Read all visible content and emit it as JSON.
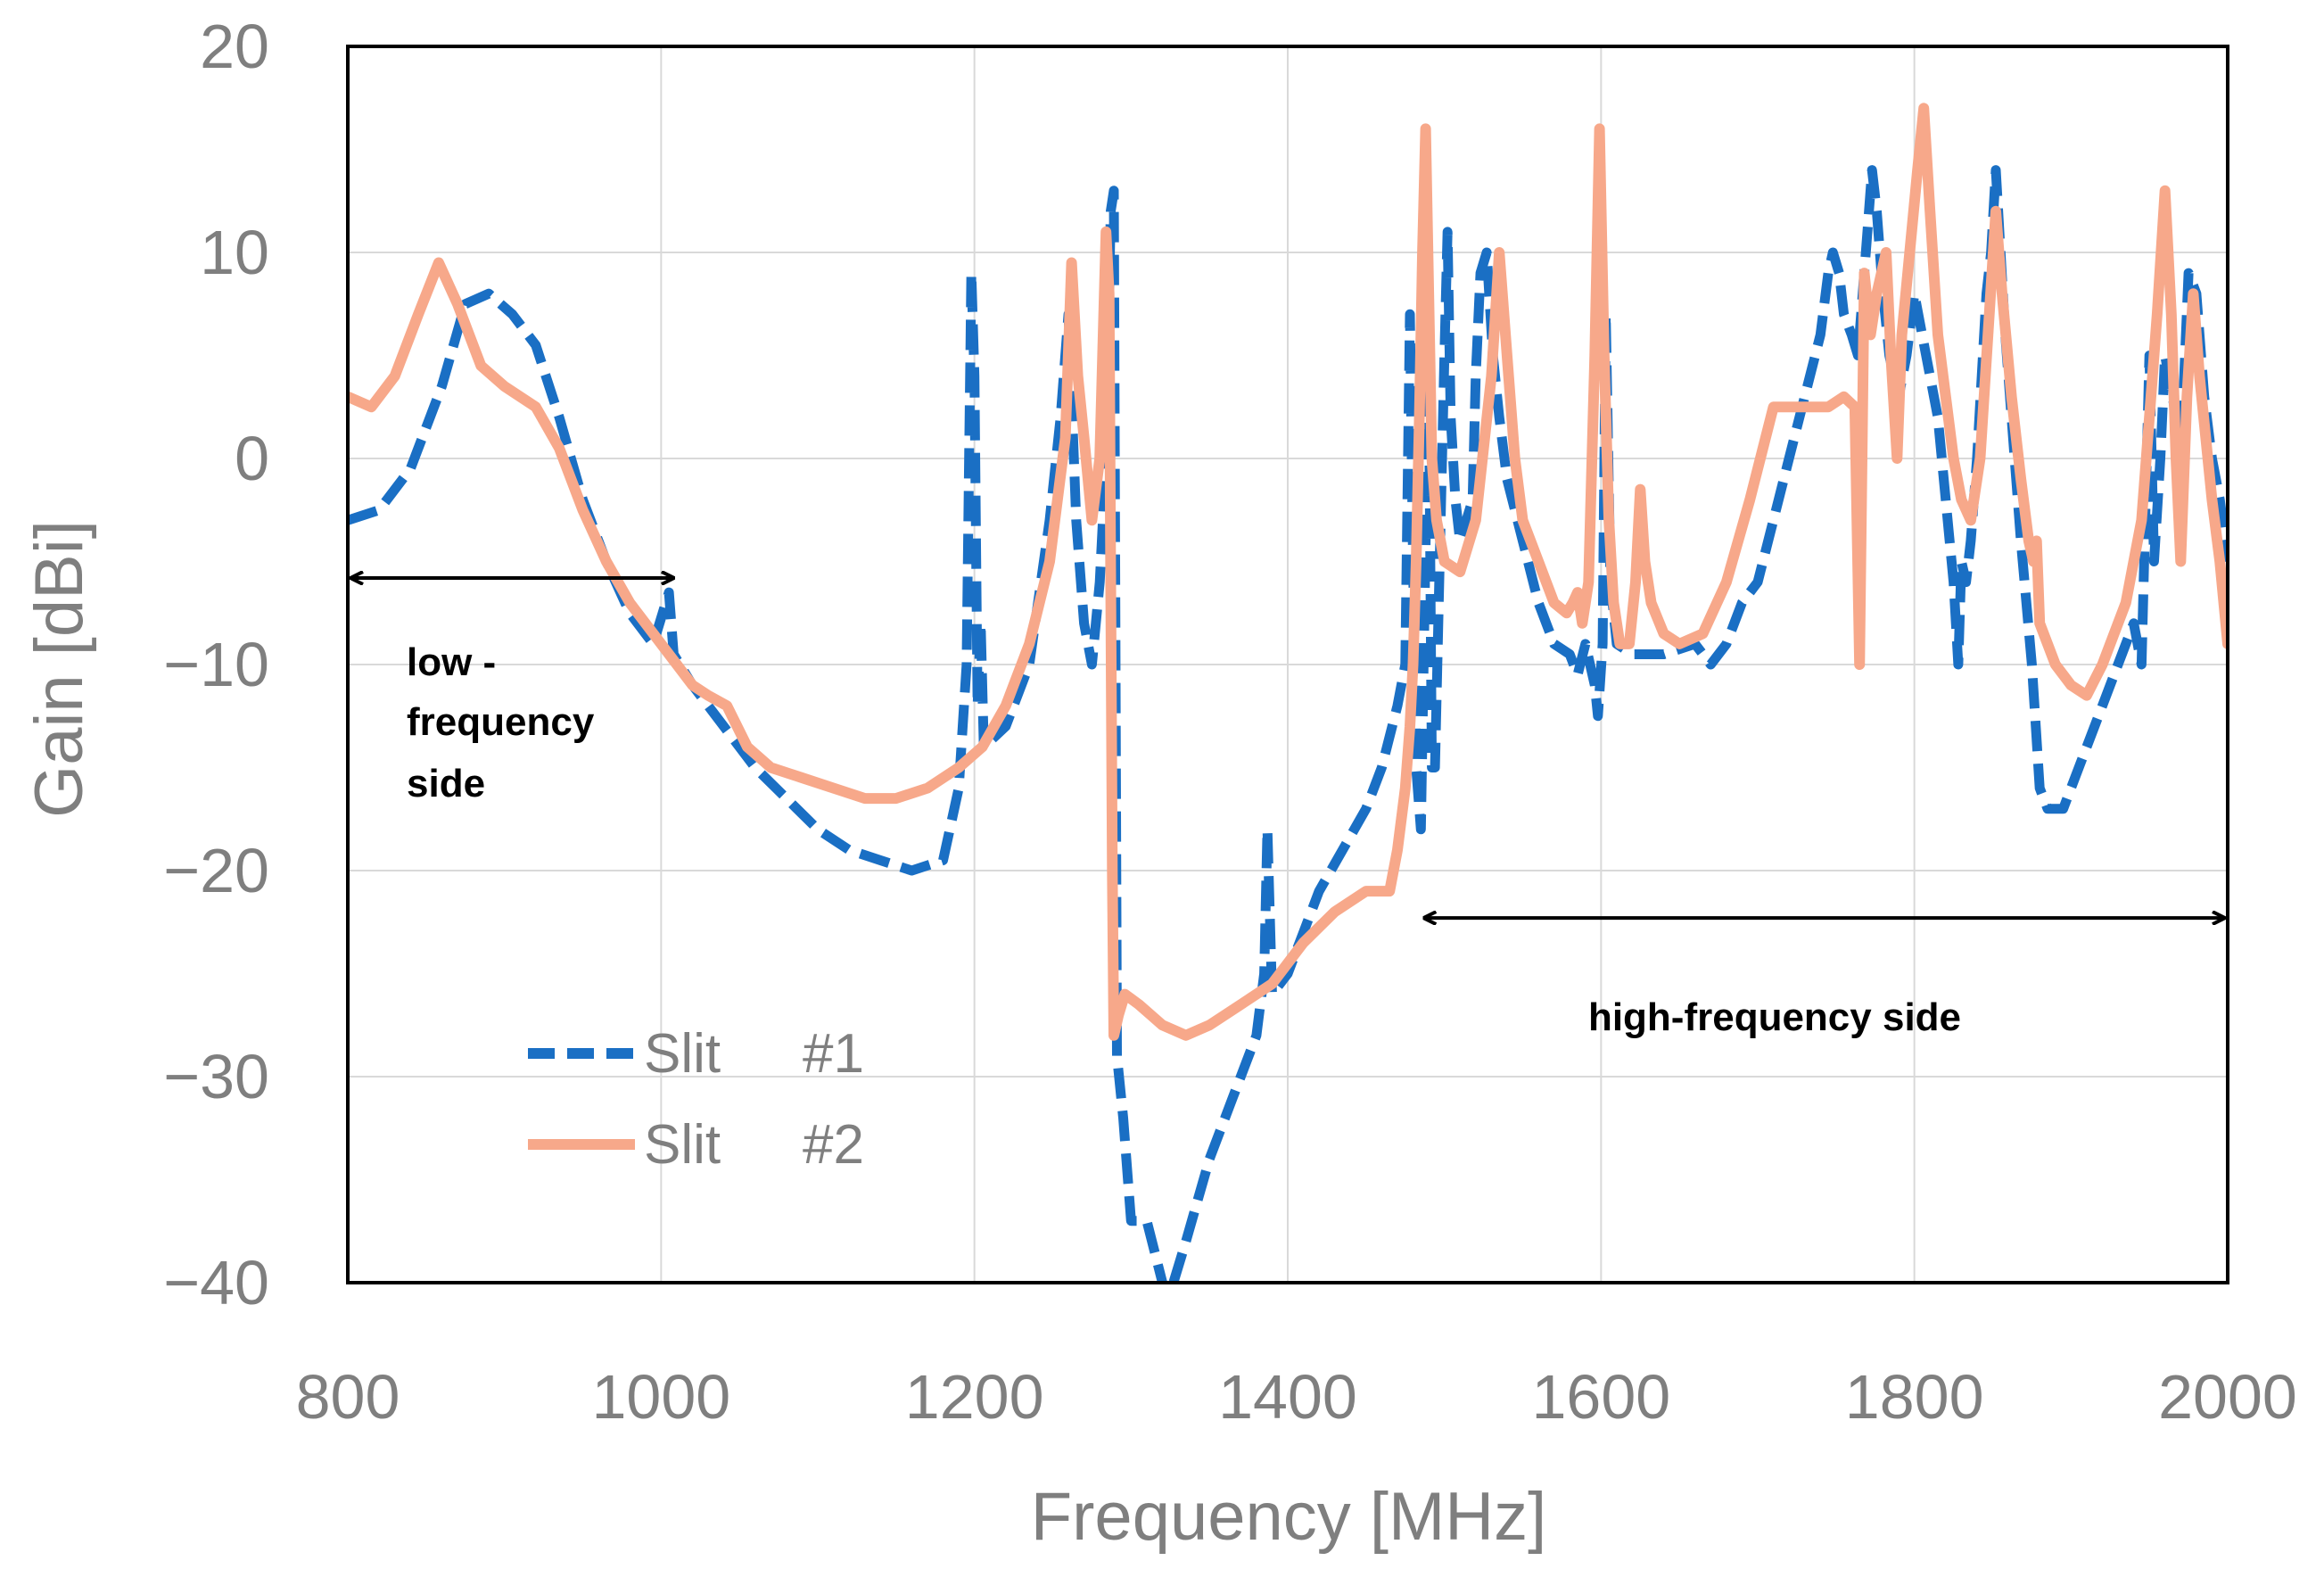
{
  "chart_data": {
    "type": "line",
    "title": "",
    "xlabel": "Frequency [MHz]",
    "ylabel": "Gain [dBi]",
    "xlim": [
      800,
      2000
    ],
    "ylim": [
      -40,
      20
    ],
    "x_ticks": [
      800,
      1000,
      1200,
      1400,
      1600,
      1800,
      2000
    ],
    "y_ticks": [
      20,
      10,
      0,
      -10,
      -20,
      -30,
      -40
    ],
    "x_tick_labels": [
      "800",
      "1000",
      "1200",
      "1400",
      "1600",
      "1800",
      "2000"
    ],
    "y_tick_labels": [
      "20",
      "10",
      "0",
      "−10",
      "−20",
      "−30",
      "−40"
    ],
    "grid": true,
    "legend_position": "bottom-left",
    "series": [
      {
        "name": "Slit #1",
        "legend_label": "Slit",
        "legend_suffix": "#1",
        "color": "#1a6fc4",
        "style": "dashed",
        "points": [
          [
            800,
            -3
          ],
          [
            820,
            -2.5
          ],
          [
            840,
            -0.5
          ],
          [
            860,
            3.5
          ],
          [
            875,
            7.5
          ],
          [
            890,
            8
          ],
          [
            905,
            7
          ],
          [
            920,
            5.5
          ],
          [
            935,
            2
          ],
          [
            950,
            -2
          ],
          [
            965,
            -5
          ],
          [
            980,
            -7.5
          ],
          [
            995,
            -9
          ],
          [
            1005,
            -6.5
          ],
          [
            1008,
            -9.5
          ],
          [
            1020,
            -11
          ],
          [
            1040,
            -13
          ],
          [
            1060,
            -15
          ],
          [
            1080,
            -16.5
          ],
          [
            1100,
            -18
          ],
          [
            1120,
            -19
          ],
          [
            1140,
            -19.5
          ],
          [
            1160,
            -20
          ],
          [
            1180,
            -19.5
          ],
          [
            1190,
            -16
          ],
          [
            1195,
            -10
          ],
          [
            1198,
            9
          ],
          [
            1200,
            4
          ],
          [
            1202,
            -12
          ],
          [
            1204,
            -8
          ],
          [
            1206,
            -14
          ],
          [
            1220,
            -13
          ],
          [
            1235,
            -10
          ],
          [
            1248,
            -3
          ],
          [
            1255,
            2
          ],
          [
            1260,
            7
          ],
          [
            1265,
            -3
          ],
          [
            1270,
            -8
          ],
          [
            1275,
            -10
          ],
          [
            1280,
            -6
          ],
          [
            1284,
            0
          ],
          [
            1287,
            12
          ],
          [
            1289,
            13
          ],
          [
            1291,
            -29
          ],
          [
            1295,
            -32
          ],
          [
            1300,
            -37
          ],
          [
            1310,
            -37
          ],
          [
            1320,
            -40
          ],
          [
            1325,
            -40.5
          ],
          [
            1335,
            -38
          ],
          [
            1350,
            -34
          ],
          [
            1365,
            -31
          ],
          [
            1380,
            -28
          ],
          [
            1385,
            -25
          ],
          [
            1387,
            -18
          ],
          [
            1390,
            -26
          ],
          [
            1400,
            -25
          ],
          [
            1410,
            -23
          ],
          [
            1420,
            -21
          ],
          [
            1435,
            -19
          ],
          [
            1450,
            -17
          ],
          [
            1460,
            -15
          ],
          [
            1470,
            -12
          ],
          [
            1475,
            -10
          ],
          [
            1478,
            7
          ],
          [
            1480,
            -5
          ],
          [
            1482,
            -15
          ],
          [
            1485,
            -18
          ],
          [
            1490,
            5
          ],
          [
            1492,
            -15
          ],
          [
            1494,
            -15
          ],
          [
            1497,
            -5
          ],
          [
            1500,
            5
          ],
          [
            1502,
            11
          ],
          [
            1504,
            2
          ],
          [
            1507,
            -2
          ],
          [
            1510,
            -4
          ],
          [
            1514,
            -3
          ],
          [
            1518,
            -2
          ],
          [
            1520,
            4
          ],
          [
            1523,
            9
          ],
          [
            1527,
            10
          ],
          [
            1531,
            5
          ],
          [
            1535,
            2
          ],
          [
            1540,
            -1
          ],
          [
            1550,
            -4
          ],
          [
            1560,
            -7
          ],
          [
            1570,
            -9
          ],
          [
            1580,
            -9.5
          ],
          [
            1585,
            -10.5
          ],
          [
            1590,
            -9
          ],
          [
            1593,
            -10
          ],
          [
            1596,
            -11
          ],
          [
            1598,
            -12.5
          ],
          [
            1601,
            -9
          ],
          [
            1603,
            7
          ],
          [
            1606,
            -6
          ],
          [
            1610,
            -9
          ],
          [
            1620,
            -9.5
          ],
          [
            1640,
            -9.5
          ],
          [
            1660,
            -9
          ],
          [
            1670,
            -10
          ],
          [
            1680,
            -9
          ],
          [
            1690,
            -7
          ],
          [
            1700,
            -6
          ],
          [
            1710,
            -3
          ],
          [
            1720,
            0
          ],
          [
            1730,
            3
          ],
          [
            1740,
            6
          ],
          [
            1745,
            9
          ],
          [
            1748,
            10
          ],
          [
            1752,
            9
          ],
          [
            1755,
            7
          ],
          [
            1760,
            6
          ],
          [
            1764,
            5
          ],
          [
            1767,
            8
          ],
          [
            1770,
            11
          ],
          [
            1773,
            14
          ],
          [
            1776,
            12
          ],
          [
            1780,
            8
          ],
          [
            1784,
            5
          ],
          [
            1790,
            3
          ],
          [
            1795,
            5
          ],
          [
            1800,
            8
          ],
          [
            1805,
            6
          ],
          [
            1810,
            4
          ],
          [
            1815,
            2
          ],
          [
            1820,
            -2
          ],
          [
            1825,
            -6
          ],
          [
            1828,
            -10
          ],
          [
            1830,
            -5
          ],
          [
            1833,
            -6
          ],
          [
            1836,
            -4
          ],
          [
            1840,
            0
          ],
          [
            1843,
            4
          ],
          [
            1846,
            8
          ],
          [
            1849,
            10
          ],
          [
            1852,
            14
          ],
          [
            1855,
            10
          ],
          [
            1858,
            6
          ],
          [
            1862,
            2
          ],
          [
            1868,
            -4
          ],
          [
            1875,
            -10
          ],
          [
            1880,
            -16
          ],
          [
            1885,
            -17
          ],
          [
            1890,
            -17
          ],
          [
            1895,
            -17
          ],
          [
            1900,
            -16
          ],
          [
            1910,
            -14
          ],
          [
            1920,
            -12
          ],
          [
            1930,
            -10
          ],
          [
            1940,
            -8
          ],
          [
            1945,
            -10
          ],
          [
            1950,
            5
          ],
          [
            1953,
            -5
          ],
          [
            1957,
            0
          ],
          [
            1960,
            5
          ],
          [
            1965,
            3
          ],
          [
            1970,
            0
          ],
          [
            1975,
            9
          ],
          [
            1980,
            8
          ],
          [
            1985,
            3
          ],
          [
            1990,
            0
          ],
          [
            1995,
            -2
          ],
          [
            2000,
            -5
          ]
        ]
      },
      {
        "name": "Slit #2",
        "legend_label": "Slit",
        "legend_suffix": "#2",
        "color": "#f7a88a",
        "style": "solid",
        "points": [
          [
            800,
            3
          ],
          [
            815,
            2.5
          ],
          [
            830,
            4
          ],
          [
            845,
            7
          ],
          [
            858,
            9.5
          ],
          [
            870,
            7.5
          ],
          [
            885,
            4.5
          ],
          [
            900,
            3.5
          ],
          [
            920,
            2.5
          ],
          [
            935,
            0.5
          ],
          [
            950,
            -2.5
          ],
          [
            965,
            -5
          ],
          [
            980,
            -7
          ],
          [
            1000,
            -9
          ],
          [
            1020,
            -11
          ],
          [
            1030,
            -11.5
          ],
          [
            1042,
            -12
          ],
          [
            1055,
            -14
          ],
          [
            1070,
            -15
          ],
          [
            1090,
            -15.5
          ],
          [
            1110,
            -16
          ],
          [
            1130,
            -16.5
          ],
          [
            1150,
            -16.5
          ],
          [
            1170,
            -16
          ],
          [
            1190,
            -15
          ],
          [
            1205,
            -14
          ],
          [
            1220,
            -12
          ],
          [
            1235,
            -9
          ],
          [
            1248,
            -5
          ],
          [
            1258,
            1
          ],
          [
            1262,
            9.5
          ],
          [
            1266,
            4
          ],
          [
            1270,
            1
          ],
          [
            1275,
            -3
          ],
          [
            1280,
            0
          ],
          [
            1284,
            11
          ],
          [
            1286,
            8
          ],
          [
            1288,
            -20
          ],
          [
            1289,
            -28
          ],
          [
            1292,
            -27
          ],
          [
            1296,
            -26
          ],
          [
            1305,
            -26.5
          ],
          [
            1320,
            -27.5
          ],
          [
            1335,
            -28
          ],
          [
            1350,
            -27.5
          ],
          [
            1370,
            -26.5
          ],
          [
            1390,
            -25.5
          ],
          [
            1410,
            -23.5
          ],
          [
            1430,
            -22
          ],
          [
            1450,
            -21
          ],
          [
            1465,
            -21
          ],
          [
            1470,
            -19
          ],
          [
            1475,
            -16
          ],
          [
            1478,
            -13
          ],
          [
            1480,
            -10
          ],
          [
            1482,
            -5
          ],
          [
            1484,
            2
          ],
          [
            1486,
            10
          ],
          [
            1488,
            16
          ],
          [
            1490,
            8
          ],
          [
            1492,
            0
          ],
          [
            1495,
            -3
          ],
          [
            1500,
            -5
          ],
          [
            1510,
            -5.5
          ],
          [
            1520,
            -3
          ],
          [
            1530,
            4
          ],
          [
            1535,
            10
          ],
          [
            1540,
            5
          ],
          [
            1545,
            0
          ],
          [
            1550,
            -3
          ],
          [
            1560,
            -5
          ],
          [
            1570,
            -7
          ],
          [
            1578,
            -7.5
          ],
          [
            1582,
            -7
          ],
          [
            1585,
            -6.5
          ],
          [
            1588,
            -8
          ],
          [
            1592,
            -6
          ],
          [
            1596,
            5
          ],
          [
            1599,
            16
          ],
          [
            1602,
            5
          ],
          [
            1605,
            -3
          ],
          [
            1608,
            -7
          ],
          [
            1612,
            -9
          ],
          [
            1618,
            -9
          ],
          [
            1622,
            -6
          ],
          [
            1625,
            -1.5
          ],
          [
            1628,
            -5
          ],
          [
            1632,
            -7
          ],
          [
            1640,
            -8.5
          ],
          [
            1650,
            -9
          ],
          [
            1665,
            -8.5
          ],
          [
            1680,
            -6
          ],
          [
            1695,
            -2
          ],
          [
            1710,
            2.5
          ],
          [
            1730,
            2.5
          ],
          [
            1745,
            2.5
          ],
          [
            1755,
            3
          ],
          [
            1762,
            2.5
          ],
          [
            1765,
            -10
          ],
          [
            1768,
            9
          ],
          [
            1772,
            6
          ],
          [
            1776,
            8
          ],
          [
            1782,
            10
          ],
          [
            1785,
            5
          ],
          [
            1789,
            0
          ],
          [
            1792,
            6
          ],
          [
            1797,
            10
          ],
          [
            1802,
            14
          ],
          [
            1806,
            17
          ],
          [
            1810,
            12
          ],
          [
            1815,
            6
          ],
          [
            1820,
            3
          ],
          [
            1825,
            0
          ],
          [
            1830,
            -2
          ],
          [
            1836,
            -3
          ],
          [
            1842,
            0
          ],
          [
            1847,
            6
          ],
          [
            1852,
            12
          ],
          [
            1856,
            8
          ],
          [
            1862,
            3
          ],
          [
            1868,
            -1
          ],
          [
            1873,
            -4
          ],
          [
            1876,
            -5
          ],
          [
            1878,
            -4
          ],
          [
            1880,
            -8
          ],
          [
            1890,
            -10
          ],
          [
            1900,
            -11
          ],
          [
            1910,
            -11.5
          ],
          [
            1920,
            -10
          ],
          [
            1935,
            -7
          ],
          [
            1945,
            -3
          ],
          [
            1950,
            2
          ],
          [
            1955,
            7
          ],
          [
            1960,
            13
          ],
          [
            1964,
            7
          ],
          [
            1967,
            0
          ],
          [
            1970,
            -5
          ],
          [
            1974,
            3
          ],
          [
            1978,
            8
          ],
          [
            1982,
            4
          ],
          [
            1986,
            1
          ],
          [
            1990,
            -2
          ],
          [
            1995,
            -5
          ],
          [
            2000,
            -9
          ]
        ]
      }
    ],
    "annotations": [
      {
        "text": "low -",
        "text2": "frequency",
        "text3": "side",
        "arrow_from": 800,
        "arrow_to": 1010,
        "arrow_y": -5.8
      },
      {
        "text": "high-frequency side",
        "arrow_from": 1485,
        "arrow_to": 2000,
        "arrow_y": -22.3
      }
    ]
  }
}
